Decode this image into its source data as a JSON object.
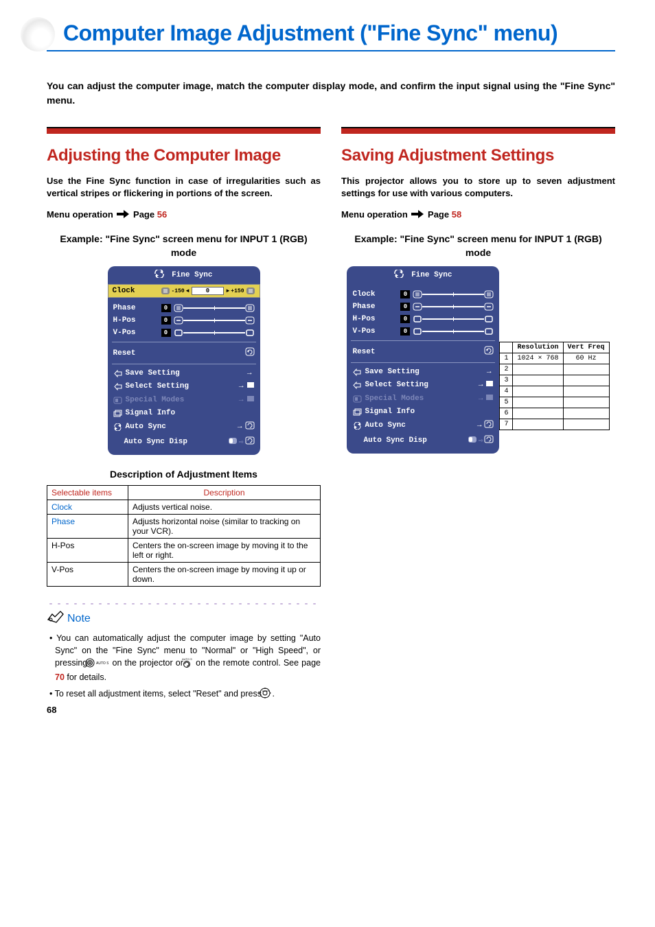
{
  "page_number": "68",
  "title": "Computer Image Adjustment (\"Fine Sync\" menu)",
  "intro": "You can adjust the computer image, match the computer display mode, and confirm the input signal using the \"Fine Sync\" menu.",
  "colors": {
    "heading_blue": "#0066cc",
    "accent_red": "#c0261f",
    "menu_bg": "#3b4a8a",
    "menu_highlight": "#e3d052"
  },
  "left": {
    "heading": "Adjusting the Computer Image",
    "lead": "Use the Fine Sync function in case of irregularities such as vertical stripes or flickering in portions of the screen.",
    "menu_op_prefix": "Menu operation",
    "menu_op_page_label": "Page",
    "menu_op_page": "56",
    "example_caption": "Example: \"Fine Sync\" screen menu for INPUT 1 (RGB) mode",
    "fs_menu": {
      "title": "Fine Sync",
      "active": {
        "label": "Clock",
        "value": "0",
        "min": "-150",
        "max": "+150"
      },
      "rows": [
        {
          "label": "Phase",
          "value": "0"
        },
        {
          "label": "H-Pos",
          "value": "0"
        },
        {
          "label": "V-Pos",
          "value": "0"
        }
      ],
      "reset": "Reset",
      "items": [
        {
          "label": "Save Setting",
          "type": "arrow"
        },
        {
          "label": "Select Setting",
          "type": "arrow-box"
        },
        {
          "label": "Special Modes",
          "type": "arrow-box",
          "dimmed": true
        },
        {
          "label": "Signal Info",
          "type": "none"
        },
        {
          "label": "Auto Sync",
          "type": "arrow-icon"
        },
        {
          "label": "Auto Sync Disp",
          "type": "toggle"
        }
      ]
    },
    "desc_heading": "Description of Adjustment Items",
    "desc_headers": [
      "Selectable items",
      "Description"
    ],
    "desc_rows": [
      {
        "item": "Clock",
        "desc": "Adjusts vertical noise.",
        "link": true
      },
      {
        "item": "Phase",
        "desc": "Adjusts horizontal noise (similar to tracking on your VCR).",
        "link": true
      },
      {
        "item": "H-Pos",
        "desc": "Centers the on-screen image by moving it to the left or right.",
        "link": false
      },
      {
        "item": "V-Pos",
        "desc": "Centers the on-screen image by moving it up or down.",
        "link": false
      }
    ],
    "note_label": "Note",
    "notes": {
      "n1a": "You can automatically adjust the computer image by setting \"Auto Sync\" on the \"Fine Sync\" menu to \"Normal\" or \"High Speed\", or pressing ",
      "n1b": " on the projector or ",
      "n1c": " on the remote control. See page ",
      "n1_page": "70",
      "n1d": " for details.",
      "n2a": "To reset all adjustment items, select \"Reset\" and press ",
      "n2b": "."
    }
  },
  "right": {
    "heading": "Saving Adjustment Settings",
    "lead": "This projector allows you to store up to seven adjustment settings for use with various computers.",
    "menu_op_prefix": "Menu operation",
    "menu_op_page_label": "Page",
    "menu_op_page": "58",
    "example_caption": "Example: \"Fine Sync\" screen menu for INPUT 1 (RGB) mode",
    "fs_menu": {
      "title": "Fine Sync",
      "rows": [
        {
          "label": "Clock",
          "value": "0"
        },
        {
          "label": "Phase",
          "value": "0"
        },
        {
          "label": "H-Pos",
          "value": "0"
        },
        {
          "label": "V-Pos",
          "value": "0"
        }
      ],
      "reset": "Reset",
      "items": [
        {
          "label": "Save Setting",
          "type": "arrow"
        },
        {
          "label": "Select Setting",
          "type": "arrow-box"
        },
        {
          "label": "Special Modes",
          "type": "arrow-box",
          "dimmed": true
        },
        {
          "label": "Signal Info",
          "type": "none"
        },
        {
          "label": "Auto Sync",
          "type": "arrow-icon"
        },
        {
          "label": "Auto Sync Disp",
          "type": "toggle"
        }
      ]
    },
    "res_table": {
      "headers": [
        "Resolution",
        "Vert Freq"
      ],
      "rows": [
        [
          "1",
          "1024 × 768",
          "60 Hz"
        ],
        [
          "2",
          "",
          ""
        ],
        [
          "3",
          "",
          ""
        ],
        [
          "4",
          "",
          ""
        ],
        [
          "5",
          "",
          ""
        ],
        [
          "6",
          "",
          ""
        ],
        [
          "7",
          "",
          ""
        ]
      ]
    }
  }
}
